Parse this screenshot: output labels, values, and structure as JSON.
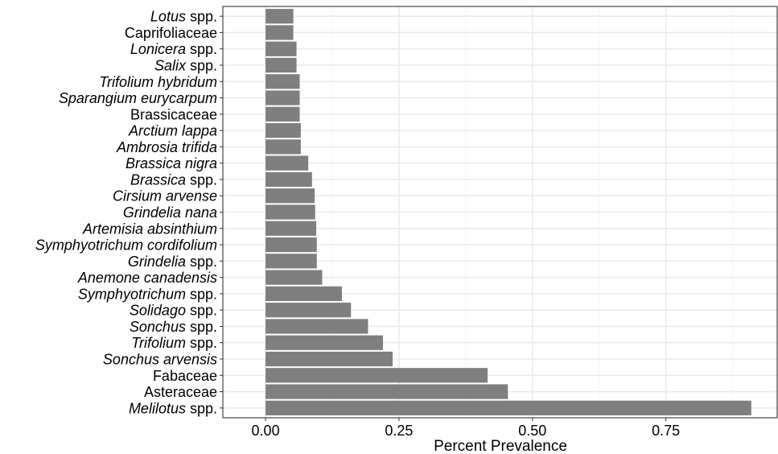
{
  "colors": {
    "bar": "#7f7f7f",
    "grid_major": "#ebebeb",
    "grid_minor": "#f5f5f5",
    "panel_border": "#333333",
    "axis_text": "#000000"
  },
  "chart_data": {
    "type": "bar",
    "orientation": "horizontal",
    "xlabel": "Percent Prevalence",
    "ylabel": "",
    "xlim": [
      -0.08,
      0.96
    ],
    "xticks": [
      0.0,
      0.25,
      0.5,
      0.75
    ],
    "xtick_labels": [
      "0.00",
      "0.25",
      "0.50",
      "0.75"
    ],
    "grid": true,
    "theme": "bw",
    "categories": [
      {
        "name": "Lotus",
        "suffix": " spp.",
        "italic": true,
        "value": 0.052
      },
      {
        "name": "Caprifoliaceae",
        "suffix": "",
        "italic": false,
        "value": 0.052
      },
      {
        "name": "Lonicera",
        "suffix": " spp.",
        "italic": true,
        "value": 0.058
      },
      {
        "name": "Salix",
        "suffix": " spp.",
        "italic": true,
        "value": 0.058
      },
      {
        "name": "Trifolium hybridum",
        "suffix": "",
        "italic": true,
        "value": 0.064
      },
      {
        "name": "Sparangium eurycarpum",
        "suffix": "",
        "italic": true,
        "value": 0.064
      },
      {
        "name": "Brassicaceae",
        "suffix": "",
        "italic": false,
        "value": 0.064
      },
      {
        "name": "Arctium lappa",
        "suffix": "",
        "italic": true,
        "value": 0.066
      },
      {
        "name": "Ambrosia trifida",
        "suffix": "",
        "italic": true,
        "value": 0.066
      },
      {
        "name": "Brassica nigra",
        "suffix": "",
        "italic": true,
        "value": 0.08
      },
      {
        "name": "Brassica",
        "suffix": " spp.",
        "italic": true,
        "value": 0.087
      },
      {
        "name": "Cirsium arvense",
        "suffix": "",
        "italic": true,
        "value": 0.092
      },
      {
        "name": "Grindelia nana",
        "suffix": "",
        "italic": true,
        "value": 0.093
      },
      {
        "name": "Artemisia absinthium",
        "suffix": "",
        "italic": true,
        "value": 0.095
      },
      {
        "name": "Symphyotrichum cordifolium",
        "suffix": "",
        "italic": true,
        "value": 0.096
      },
      {
        "name": "Grindelia",
        "suffix": " spp.",
        "italic": true,
        "value": 0.096
      },
      {
        "name": "Anemone canadensis",
        "suffix": "",
        "italic": true,
        "value": 0.106
      },
      {
        "name": "Symphyotrichum",
        "suffix": " spp.",
        "italic": true,
        "value": 0.143
      },
      {
        "name": "Solidago",
        "suffix": " spp.",
        "italic": true,
        "value": 0.16
      },
      {
        "name": "Sonchus",
        "suffix": " spp.",
        "italic": true,
        "value": 0.192
      },
      {
        "name": "Trifolium",
        "suffix": " spp.",
        "italic": true,
        "value": 0.22
      },
      {
        "name": "Sonchus arvensis",
        "suffix": "",
        "italic": true,
        "value": 0.238
      },
      {
        "name": "Fabaceae",
        "suffix": "",
        "italic": false,
        "value": 0.416
      },
      {
        "name": "Asteraceae",
        "suffix": "",
        "italic": false,
        "value": 0.454
      },
      {
        "name": "Melilotus",
        "suffix": " spp.",
        "italic": true,
        "value": 0.91
      }
    ]
  }
}
